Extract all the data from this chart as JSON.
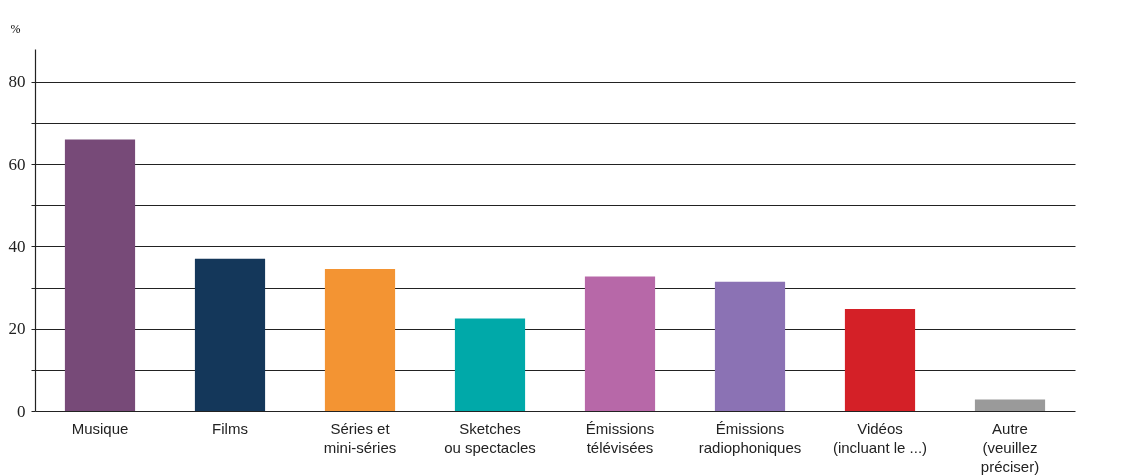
{
  "chart_data": {
    "type": "bar",
    "ylabel": "%",
    "categories": [
      "Musique",
      "Films",
      "Séries et\nmini-séries",
      "Sketches\nou spectacles",
      "Émissions\ntélévisées",
      "Émissions\nradiophoniques",
      "Vidéos\n(incluant le ...)",
      "Autre\n(veuillez\npréciser)"
    ],
    "values": [
      66,
      37,
      34.5,
      22.5,
      32.7,
      31.4,
      24.8,
      2.8
    ],
    "colors": [
      "#774a78",
      "#14375a",
      "#f39433",
      "#00a9a9",
      "#b768a8",
      "#8b72b4",
      "#d42027",
      "#9a9a9a"
    ],
    "ylim": [
      0,
      88
    ],
    "yticks": [
      0,
      {
        "value": 10,
        "label": null
      },
      20,
      {
        "value": 30,
        "label": null
      },
      40,
      {
        "value": 50,
        "label": null
      },
      60,
      {
        "value": 70,
        "label": null
      },
      80
    ],
    "grid": "y"
  }
}
